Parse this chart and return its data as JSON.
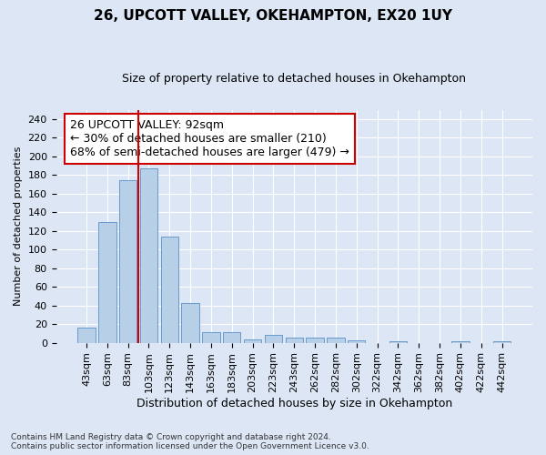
{
  "title1": "26, UPCOTT VALLEY, OKEHAMPTON, EX20 1UY",
  "title2": "Size of property relative to detached houses in Okehampton",
  "xlabel": "Distribution of detached houses by size in Okehampton",
  "ylabel": "Number of detached properties",
  "footnote1": "Contains HM Land Registry data © Crown copyright and database right 2024.",
  "footnote2": "Contains public sector information licensed under the Open Government Licence v3.0.",
  "categories": [
    "43sqm",
    "63sqm",
    "83sqm",
    "103sqm",
    "123sqm",
    "143sqm",
    "163sqm",
    "183sqm",
    "203sqm",
    "223sqm",
    "243sqm",
    "262sqm",
    "282sqm",
    "302sqm",
    "322sqm",
    "342sqm",
    "362sqm",
    "382sqm",
    "402sqm",
    "422sqm",
    "442sqm"
  ],
  "values": [
    16,
    129,
    174,
    187,
    114,
    43,
    11,
    11,
    4,
    8,
    5,
    5,
    5,
    3,
    0,
    2,
    0,
    0,
    2,
    0,
    2
  ],
  "bar_color": "#b8cfe8",
  "bar_edge_color": "#6699cc",
  "vline_xindex": 2.5,
  "vline_color": "#cc0000",
  "annotation_line1": "26 UPCOTT VALLEY: 92sqm",
  "annotation_line2": "← 30% of detached houses are smaller (210)",
  "annotation_line3": "68% of semi-detached houses are larger (479) →",
  "ylim": [
    0,
    250
  ],
  "yticks": [
    0,
    20,
    40,
    60,
    80,
    100,
    120,
    140,
    160,
    180,
    200,
    220,
    240
  ],
  "bg_color": "#dce6f5",
  "title1_fontsize": 11,
  "title2_fontsize": 9,
  "xlabel_fontsize": 9,
  "ylabel_fontsize": 8,
  "tick_fontsize": 8,
  "xtick_fontsize": 8,
  "footnote_fontsize": 6.5,
  "annotation_fontsize": 9
}
